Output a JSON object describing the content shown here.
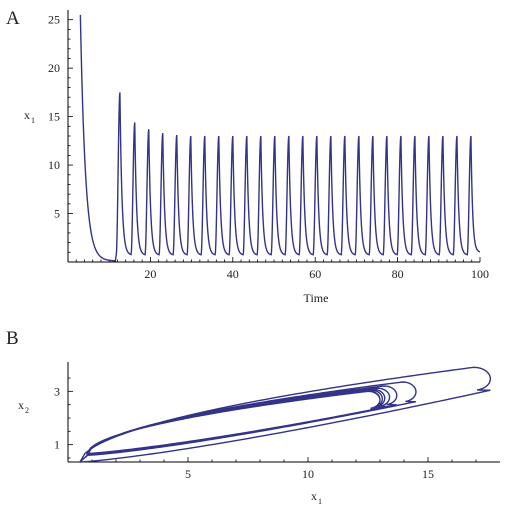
{
  "chart_data": [
    {
      "panel": "A",
      "type": "line",
      "xlabel": "Time",
      "ylabel": "x",
      "ylabel_sub": "1",
      "xlim": [
        0,
        100
      ],
      "ylim": [
        0,
        26
      ],
      "xticks": [
        20,
        40,
        60,
        80,
        100
      ],
      "yticks": [
        5,
        10,
        15,
        20,
        25
      ],
      "color": "#333388",
      "initial_decay": {
        "start": [
          3,
          25.5
        ],
        "min_time": 11.5,
        "min_value": 0.1
      },
      "oscillation": {
        "peaks": [
          {
            "t": 12.6,
            "x": 17.5
          },
          {
            "t": 16.2,
            "x": 14.4
          },
          {
            "t": 19.6,
            "x": 13.7
          },
          {
            "t": 23.0,
            "x": 13.3
          },
          {
            "t": 26.4,
            "x": 13.1
          },
          {
            "t": 29.8,
            "x": 13.0
          },
          {
            "t": 33.2,
            "x": 13.0
          },
          {
            "t": 36.6,
            "x": 13.0
          },
          {
            "t": 40.0,
            "x": 13.0
          },
          {
            "t": 43.4,
            "x": 13.0
          },
          {
            "t": 46.8,
            "x": 13.0
          },
          {
            "t": 50.2,
            "x": 13.0
          },
          {
            "t": 53.6,
            "x": 13.0
          },
          {
            "t": 57.0,
            "x": 13.0
          },
          {
            "t": 60.4,
            "x": 13.0
          },
          {
            "t": 63.8,
            "x": 13.0
          },
          {
            "t": 67.2,
            "x": 13.0
          },
          {
            "t": 70.6,
            "x": 13.0
          },
          {
            "t": 74.0,
            "x": 13.0
          },
          {
            "t": 77.4,
            "x": 13.0
          },
          {
            "t": 80.8,
            "x": 13.0
          },
          {
            "t": 84.2,
            "x": 13.0
          },
          {
            "t": 87.6,
            "x": 13.0
          },
          {
            "t": 91.0,
            "x": 13.0
          },
          {
            "t": 94.4,
            "x": 13.0
          },
          {
            "t": 97.8,
            "x": 13.0
          }
        ],
        "trough_value": 0.7,
        "end": [
          100,
          1.0
        ]
      }
    },
    {
      "panel": "B",
      "type": "line",
      "xlabel": "x",
      "xlabel_sub": "1",
      "ylabel": "x",
      "ylabel_sub": "2",
      "xlim": [
        0,
        18
      ],
      "ylim": [
        0.35,
        4.1
      ],
      "xticks": [
        5,
        10,
        15
      ],
      "yticks": [
        1,
        3
      ],
      "color": "#333388",
      "loops": [
        {
          "x_min": 0.5,
          "x_max": 17.6,
          "y_min": 0.35,
          "y_max": 3.9
        },
        {
          "x_min": 0.8,
          "x_max": 14.5,
          "y_min": 0.6,
          "y_max": 3.35
        },
        {
          "x_min": 0.8,
          "x_max": 13.7,
          "y_min": 0.62,
          "y_max": 3.2
        },
        {
          "x_min": 0.8,
          "x_max": 13.4,
          "y_min": 0.64,
          "y_max": 3.12
        },
        {
          "x_min": 0.8,
          "x_max": 13.2,
          "y_min": 0.65,
          "y_max": 3.08
        },
        {
          "x_min": 0.8,
          "x_max": 13.1,
          "y_min": 0.66,
          "y_max": 3.05
        },
        {
          "x_min": 0.8,
          "x_max": 13.0,
          "y_min": 0.67,
          "y_max": 3.02
        },
        {
          "x_min": 0.8,
          "x_max": 13.0,
          "y_min": 0.67,
          "y_max": 3.0
        }
      ]
    }
  ]
}
